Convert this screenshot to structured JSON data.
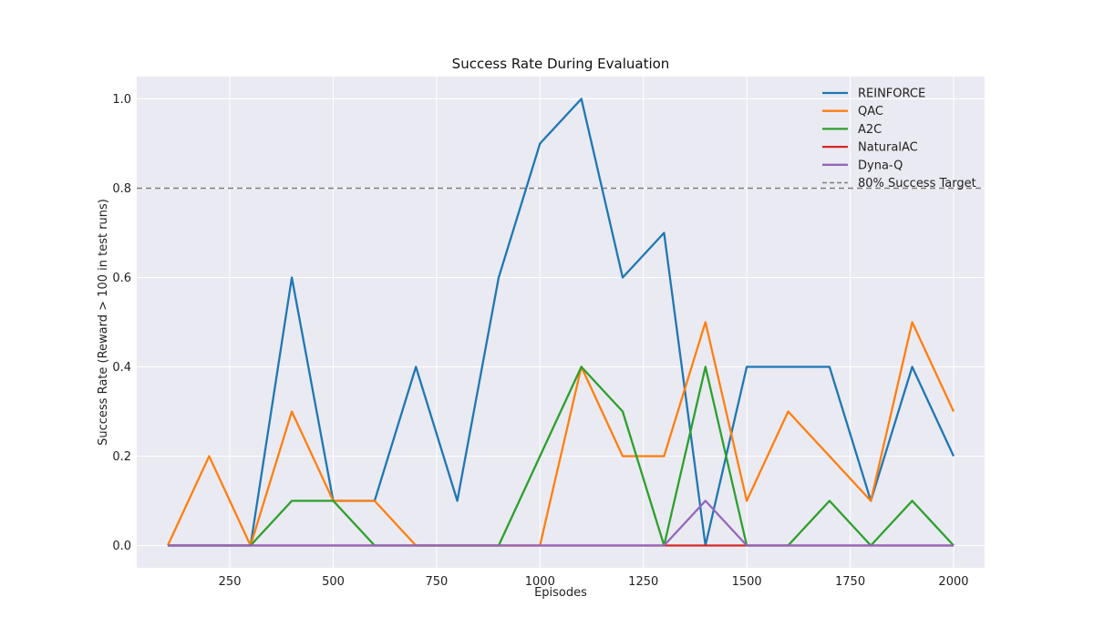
{
  "chart_data": {
    "type": "line",
    "title": "Success Rate During Evaluation",
    "xlabel": "Episodes",
    "ylabel": "Success Rate (Reward > 100 in test runs)",
    "xlim": [
      25,
      2075
    ],
    "ylim": [
      -0.05,
      1.05
    ],
    "xticks": [
      250,
      500,
      750,
      1000,
      1250,
      1500,
      1750,
      2000
    ],
    "xtick_labels": [
      "250",
      "500",
      "750",
      "1000",
      "1250",
      "1500",
      "1750",
      "2000"
    ],
    "yticks": [
      0.0,
      0.2,
      0.4,
      0.6,
      0.8,
      1.0
    ],
    "ytick_labels": [
      "0.0",
      "0.2",
      "0.4",
      "0.6",
      "0.8",
      "1.0"
    ],
    "grid": true,
    "legend_position": "top-right",
    "x": [
      100,
      200,
      300,
      400,
      500,
      600,
      700,
      800,
      900,
      1000,
      1100,
      1200,
      1300,
      1400,
      1500,
      1600,
      1700,
      1800,
      1900,
      2000
    ],
    "series": [
      {
        "name": "REINFORCE",
        "color": "#1f77b4",
        "values": [
          0.0,
          0.0,
          0.0,
          0.6,
          0.1,
          0.1,
          0.4,
          0.1,
          0.6,
          0.9,
          1.0,
          0.6,
          0.7,
          0.0,
          0.4,
          0.4,
          0.4,
          0.1,
          0.4,
          0.2
        ]
      },
      {
        "name": "QAC",
        "color": "#ff7f0e",
        "values": [
          0.0,
          0.2,
          0.0,
          0.3,
          0.1,
          0.1,
          0.0,
          0.0,
          0.0,
          0.0,
          0.4,
          0.2,
          0.2,
          0.5,
          0.1,
          0.3,
          0.2,
          0.1,
          0.5,
          0.3
        ]
      },
      {
        "name": "A2C",
        "color": "#2ca02c",
        "values": [
          0.0,
          0.0,
          0.0,
          0.1,
          0.1,
          0.0,
          0.0,
          0.0,
          0.0,
          0.2,
          0.4,
          0.3,
          0.0,
          0.4,
          0.0,
          0.0,
          0.1,
          0.0,
          0.1,
          0.0
        ]
      },
      {
        "name": "NaturalAC",
        "color": "#d62728",
        "values": [
          0.0,
          0.0,
          0.0,
          0.0,
          0.0,
          0.0,
          0.0,
          0.0,
          0.0,
          0.0,
          0.0,
          0.0,
          0.0,
          0.0,
          0.0,
          0.0,
          0.0,
          0.0,
          0.0,
          0.0
        ]
      },
      {
        "name": "Dyna-Q",
        "color": "#9467bd",
        "values": [
          0.0,
          0.0,
          0.0,
          0.0,
          0.0,
          0.0,
          0.0,
          0.0,
          0.0,
          0.0,
          0.0,
          0.0,
          0.0,
          0.1,
          0.0,
          0.0,
          0.0,
          0.0,
          0.0,
          0.0
        ]
      }
    ],
    "reference_line": {
      "name": "80% Success Target",
      "y": 0.8,
      "color": "#808080",
      "style": "dashed"
    },
    "colors": {
      "plot_background": "#eaeaf2",
      "grid": "#ffffff"
    }
  }
}
